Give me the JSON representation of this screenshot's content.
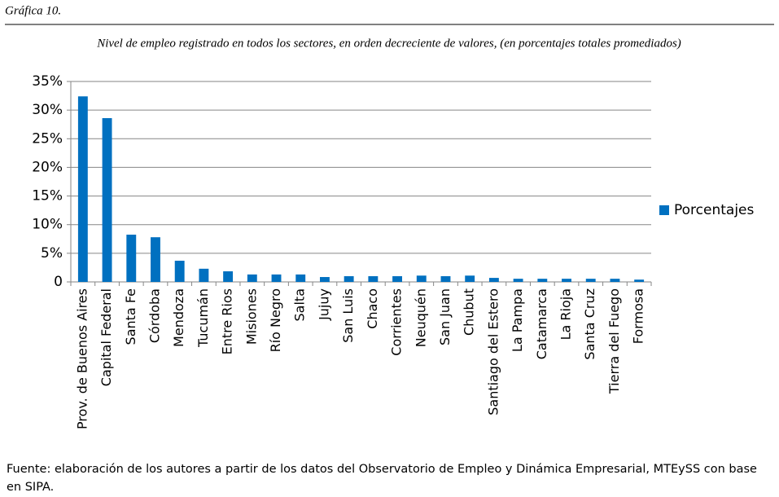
{
  "chart_data": {
    "type": "bar",
    "label": "Gráfica 10.",
    "title": "Nivel de empleo registrado en todos los sectores, en orden decreciente de valores, (en porcentajes totales promediados)",
    "source": "Fuente: elaboración de los autores a partir de los datos del Observatorio de Empleo y Dinámica Empresarial, MTEySS con base en SIPA.",
    "categories": [
      "Prov. de Buenos Aires",
      "Capital Federal",
      "Santa Fe",
      "Córdoba",
      "Mendoza",
      "Tucumán",
      "Entre Rios",
      "Misiones",
      "Río Negro",
      "Salta",
      "Jujuy",
      "San Luis",
      "Chaco",
      "Corrientes",
      "Neuquén",
      "San Juan",
      "Chubut",
      "Santiago del Estero",
      "La Pampa",
      "Catamarca",
      "La Rioja",
      "Santa Cruz",
      "Tierra del Fuego",
      "Formosa"
    ],
    "series": [
      {
        "name": "Porcentajes",
        "color": "#0070c0",
        "values": [
          32.4,
          28.6,
          8.25,
          7.8,
          3.7,
          2.3,
          1.85,
          1.3,
          1.3,
          1.3,
          0.85,
          1.0,
          1.0,
          1.0,
          1.1,
          1.0,
          1.1,
          0.7,
          0.55,
          0.55,
          0.55,
          0.55,
          0.55,
          0.4
        ]
      }
    ],
    "ylim": [
      0,
      35
    ],
    "yticks": [
      {
        "value": 0,
        "label": "0"
      },
      {
        "value": 5,
        "label": "5%"
      },
      {
        "value": 10,
        "label": "10%"
      },
      {
        "value": 15,
        "label": "15%"
      },
      {
        "value": 20,
        "label": "20%"
      },
      {
        "value": 25,
        "label": "25%"
      },
      {
        "value": 30,
        "label": "30%"
      },
      {
        "value": 35,
        "label": "35%"
      }
    ],
    "grid": true,
    "legend": "right"
  }
}
